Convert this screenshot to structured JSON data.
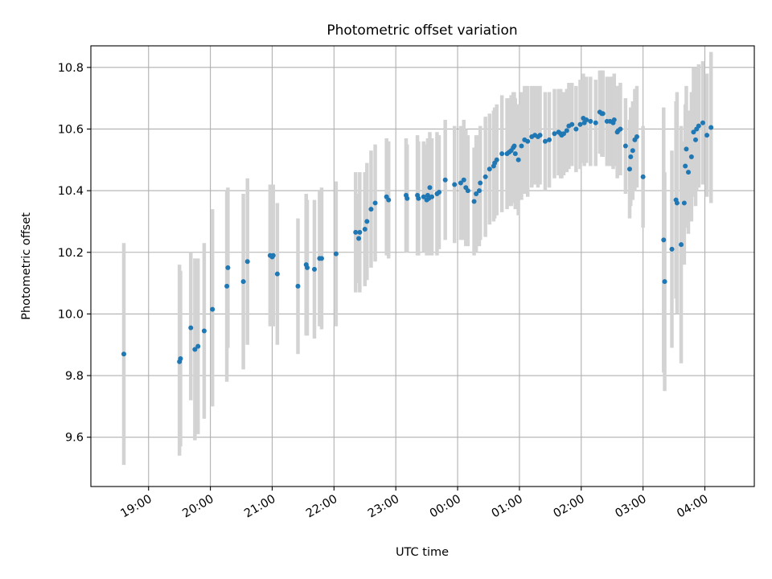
{
  "chart_data": {
    "type": "scatter",
    "title": "Photometric offset variation",
    "xlabel": "UTC time",
    "ylabel": "Photometric offset",
    "x_unit": "UTC time (HH:MM); values after midnight are on the following day",
    "x_ticks": [
      "19:00",
      "20:00",
      "21:00",
      "22:00",
      "23:00",
      "00:00",
      "01:00",
      "02:00",
      "03:00",
      "04:00"
    ],
    "xlim": [
      "18:04",
      "04:48"
    ],
    "y_ticks": [
      "9.6",
      "9.8",
      "10.0",
      "10.2",
      "10.4",
      "10.6",
      "10.8"
    ],
    "ylim": [
      9.44,
      10.87
    ],
    "grid": true,
    "point_color": "#1f77b4",
    "errorbar_color": "#d3d3d3",
    "series": [
      {
        "x": [
          "18:36",
          "19:30",
          "19:31",
          "19:41",
          "19:45",
          "19:48",
          "19:54",
          "20:02",
          "20:16",
          "20:17",
          "20:32",
          "20:36",
          "20:58",
          "21:00",
          "21:01",
          "21:05",
          "21:25",
          "21:33",
          "21:34",
          "21:41",
          "21:46",
          "21:48",
          "22:02",
          "22:21",
          "22:24",
          "22:25",
          "22:30",
          "22:32",
          "22:36",
          "22:40",
          "22:51",
          "22:53",
          "23:10",
          "23:11",
          "23:21",
          "23:22",
          "23:27",
          "23:30",
          "23:31",
          "23:32",
          "23:33",
          "23:35",
          "23:40",
          "23:42",
          "23:48",
          "23:57",
          "00:03",
          "00:06",
          "00:08",
          "00:10",
          "00:16",
          "00:18",
          "00:21",
          "00:22",
          "00:27",
          "00:31",
          "00:35",
          "00:36",
          "00:38",
          "00:43",
          "00:48",
          "00:50",
          "00:52",
          "00:54",
          "00:55",
          "00:56",
          "00:59",
          "01:02",
          "01:05",
          "01:08",
          "01:12",
          "01:15",
          "01:18",
          "01:20",
          "01:25",
          "01:29",
          "01:34",
          "01:38",
          "01:40",
          "01:41",
          "01:43",
          "01:46",
          "01:48",
          "01:51",
          "01:55",
          "01:59",
          "02:02",
          "02:03",
          "02:05",
          "02:09",
          "02:14",
          "02:18",
          "02:20",
          "02:21",
          "02:25",
          "02:28",
          "02:31",
          "02:32",
          "02:35",
          "02:36",
          "02:38",
          "02:43",
          "02:47",
          "02:48",
          "02:50",
          "02:52",
          "02:54",
          "03:00",
          "03:20",
          "03:21",
          "03:28",
          "03:32",
          "03:33",
          "03:37",
          "03:40",
          "03:41",
          "03:42",
          "03:44",
          "03:47",
          "03:49",
          "03:51",
          "03:52",
          "03:54",
          "03:58",
          "04:02",
          "04:06"
        ],
        "y": [
          9.87,
          9.845,
          9.855,
          9.955,
          9.885,
          9.895,
          9.945,
          10.015,
          10.09,
          10.15,
          10.105,
          10.17,
          10.19,
          10.185,
          10.19,
          10.13,
          10.09,
          10.16,
          10.15,
          10.145,
          10.18,
          10.18,
          10.195,
          10.265,
          10.245,
          10.265,
          10.275,
          10.3,
          10.34,
          10.36,
          10.38,
          10.37,
          10.385,
          10.375,
          10.385,
          10.375,
          10.38,
          10.37,
          10.385,
          10.375,
          10.41,
          10.38,
          10.39,
          10.395,
          10.435,
          10.42,
          10.425,
          10.435,
          10.41,
          10.4,
          10.365,
          10.39,
          10.4,
          10.425,
          10.445,
          10.47,
          10.48,
          10.49,
          10.5,
          10.52,
          10.52,
          10.525,
          10.53,
          10.54,
          10.545,
          10.52,
          10.5,
          10.545,
          10.565,
          10.56,
          10.575,
          10.58,
          10.575,
          10.58,
          10.56,
          10.565,
          10.585,
          10.59,
          10.585,
          10.58,
          10.585,
          10.595,
          10.61,
          10.615,
          10.6,
          10.615,
          10.635,
          10.62,
          10.63,
          10.625,
          10.62,
          10.655,
          10.65,
          10.65,
          10.625,
          10.625,
          10.62,
          10.63,
          10.59,
          10.595,
          10.6,
          10.545,
          10.47,
          10.51,
          10.53,
          10.565,
          10.575,
          10.445,
          10.24,
          10.105,
          10.21,
          10.37,
          10.36,
          10.225,
          10.36,
          10.48,
          10.535,
          10.46,
          10.51,
          10.59,
          10.565,
          10.6,
          10.61,
          10.62,
          10.58,
          10.605
        ],
        "err_low": [
          9.51,
          9.54,
          9.57,
          9.72,
          9.59,
          9.61,
          9.66,
          9.7,
          9.78,
          9.89,
          9.82,
          9.9,
          9.96,
          9.96,
          9.96,
          9.9,
          9.87,
          9.93,
          9.93,
          9.92,
          9.96,
          9.95,
          9.96,
          10.07,
          10.1,
          10.07,
          10.09,
          10.11,
          10.15,
          10.17,
          10.19,
          10.18,
          10.2,
          10.2,
          10.19,
          10.19,
          10.2,
          10.19,
          10.2,
          10.19,
          10.23,
          10.19,
          10.19,
          10.21,
          10.24,
          10.23,
          10.24,
          10.24,
          10.22,
          10.22,
          10.19,
          10.2,
          10.22,
          10.24,
          10.25,
          10.29,
          10.3,
          10.31,
          10.32,
          10.33,
          10.34,
          10.35,
          10.35,
          10.36,
          10.37,
          10.34,
          10.32,
          10.37,
          10.39,
          10.38,
          10.41,
          10.42,
          10.41,
          10.42,
          10.4,
          10.41,
          10.44,
          10.45,
          10.44,
          10.44,
          10.45,
          10.46,
          10.47,
          10.48,
          10.46,
          10.47,
          10.49,
          10.48,
          10.49,
          10.48,
          10.48,
          10.52,
          10.51,
          10.51,
          10.48,
          10.48,
          10.47,
          10.48,
          10.44,
          10.45,
          10.45,
          10.39,
          10.31,
          10.35,
          10.37,
          10.4,
          10.41,
          10.28,
          9.81,
          9.75,
          9.89,
          10.05,
          10.0,
          9.84,
          10.16,
          10.28,
          10.33,
          10.26,
          10.3,
          10.38,
          10.35,
          10.4,
          10.41,
          10.42,
          10.38,
          10.36
        ],
        "err_high": [
          10.23,
          10.16,
          10.14,
          10.2,
          10.18,
          10.18,
          10.23,
          10.34,
          10.4,
          10.41,
          10.39,
          10.44,
          10.42,
          10.41,
          10.42,
          10.36,
          10.31,
          10.39,
          10.37,
          10.37,
          10.4,
          10.41,
          10.43,
          10.46,
          10.39,
          10.46,
          10.46,
          10.49,
          10.53,
          10.55,
          10.57,
          10.56,
          10.57,
          10.55,
          10.58,
          10.56,
          10.56,
          10.55,
          10.57,
          10.56,
          10.59,
          10.57,
          10.59,
          10.58,
          10.63,
          10.61,
          10.61,
          10.63,
          10.6,
          10.58,
          10.54,
          10.58,
          10.58,
          10.61,
          10.64,
          10.65,
          10.66,
          10.67,
          10.68,
          10.71,
          10.7,
          10.7,
          10.71,
          10.72,
          10.72,
          10.7,
          10.68,
          10.72,
          10.74,
          10.74,
          10.74,
          10.74,
          10.74,
          10.74,
          10.72,
          10.72,
          10.73,
          10.73,
          10.73,
          10.72,
          10.72,
          10.73,
          10.75,
          10.75,
          10.74,
          10.76,
          10.78,
          10.76,
          10.77,
          10.77,
          10.76,
          10.79,
          10.79,
          10.79,
          10.77,
          10.77,
          10.77,
          10.78,
          10.74,
          10.74,
          10.75,
          10.7,
          10.63,
          10.67,
          10.69,
          10.73,
          10.74,
          10.61,
          10.67,
          10.46,
          10.53,
          10.69,
          10.72,
          10.61,
          10.56,
          10.68,
          10.74,
          10.66,
          10.72,
          10.8,
          10.78,
          10.8,
          10.81,
          10.82,
          10.78,
          10.85
        ]
      }
    ]
  }
}
